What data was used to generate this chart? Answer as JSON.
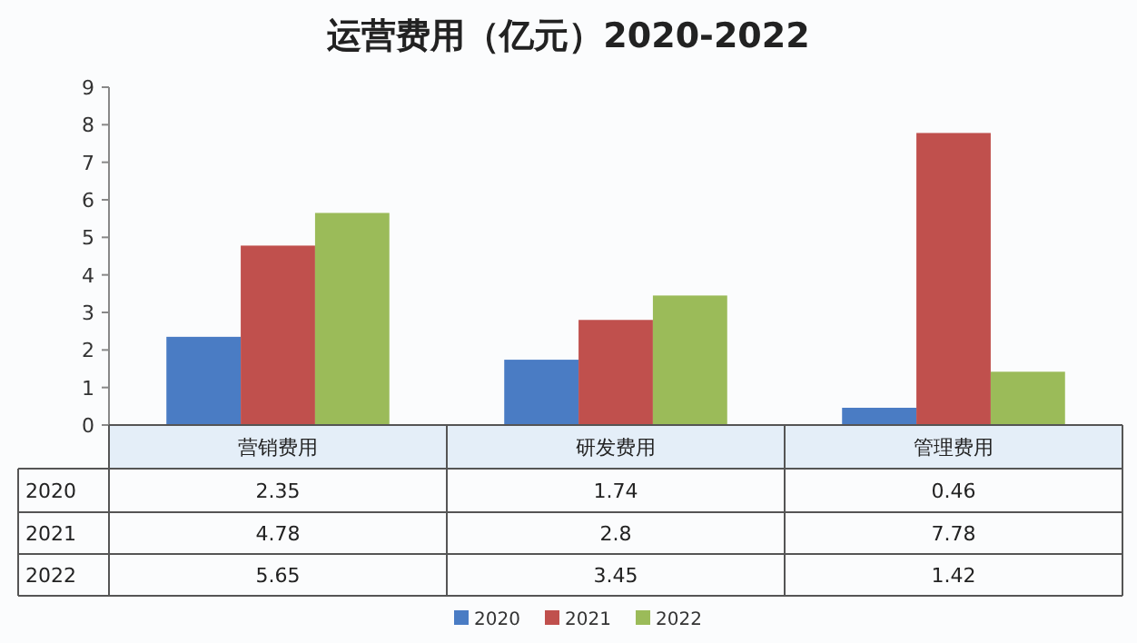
{
  "chart_data": {
    "type": "bar",
    "title": "运营费用（亿元）2020-2022",
    "categories": [
      "营销费用",
      "研发费用",
      "管理费用"
    ],
    "series": [
      {
        "name": "2020",
        "color": "#4a7cc4",
        "values": [
          2.35,
          1.74,
          0.46
        ]
      },
      {
        "name": "2021",
        "color": "#c0504d",
        "values": [
          4.78,
          2.8,
          7.78
        ]
      },
      {
        "name": "2022",
        "color": "#9bbb59",
        "values": [
          5.65,
          3.45,
          1.42
        ]
      }
    ],
    "ylim": [
      0,
      9
    ],
    "yticks": [
      0,
      1,
      2,
      3,
      4,
      5,
      6,
      7,
      8,
      9
    ],
    "data_labels": true,
    "legend": "bottom",
    "grid": false
  }
}
